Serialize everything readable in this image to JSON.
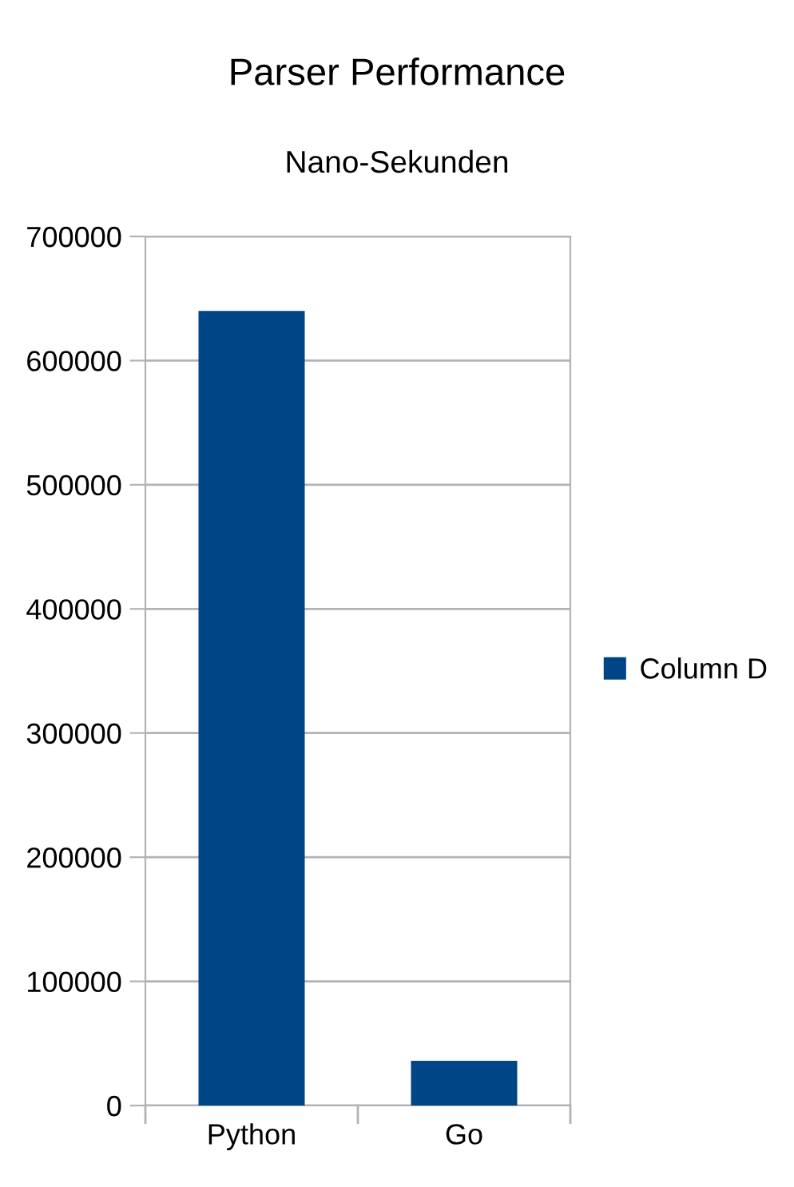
{
  "chart_data": {
    "type": "bar",
    "title": "Parser Performance",
    "subtitle": "Nano-Sekunden",
    "categories": [
      "Python",
      "Go"
    ],
    "series": [
      {
        "name": "Column D",
        "color": "#004586",
        "values": [
          640000,
          36000
        ]
      }
    ],
    "ylim": [
      0,
      700000
    ],
    "yticks": [
      0,
      100000,
      200000,
      300000,
      400000,
      500000,
      600000,
      700000
    ],
    "grid": "y",
    "legend": "right"
  }
}
